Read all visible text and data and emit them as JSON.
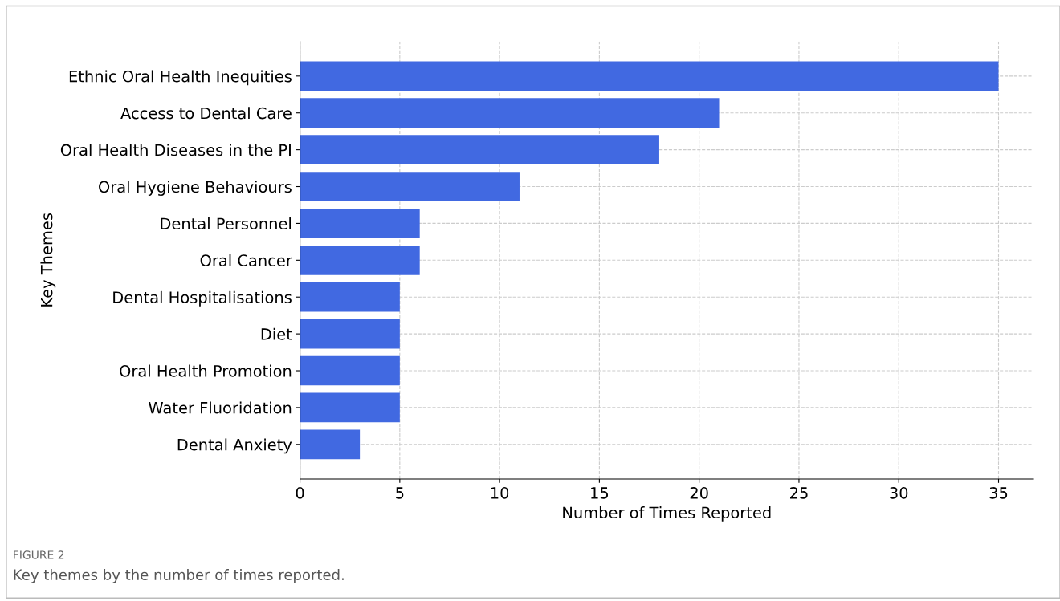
{
  "chart_data": {
    "type": "bar",
    "orientation": "horizontal",
    "categories": [
      "Ethnic Oral Health Inequities",
      "Access to Dental Care",
      "Oral Health Diseases in the PI",
      "Oral Hygiene Behaviours",
      "Dental Personnel",
      "Oral Cancer",
      "Dental Hospitalisations",
      "Diet",
      "Oral Health Promotion",
      "Water Fluoridation",
      "Dental Anxiety"
    ],
    "values": [
      35,
      21,
      18,
      11,
      6,
      6,
      5,
      5,
      5,
      5,
      3
    ],
    "color": "#4169e1",
    "xlabel": "Number of Times Reported",
    "ylabel": "Key Themes",
    "xlim": [
      0,
      36.75
    ],
    "xticks": [
      0,
      5,
      10,
      15,
      20,
      25,
      30,
      35
    ],
    "grid": true,
    "line_style": "dashed",
    "annotations": [
      "FIGURE 2",
      "Key themes by the number of times reported."
    ]
  }
}
